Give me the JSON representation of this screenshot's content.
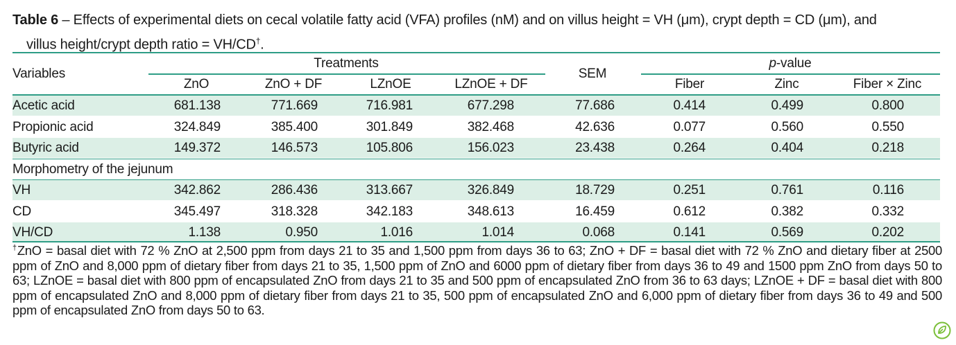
{
  "caption": {
    "label": "Table 6",
    "text_1": " – Effects of experimental diets on cecal volatile fatty acid (VFA) profiles (nM) and on villus height = VH (μm), crypt depth = CD (μm), and",
    "text_2": "villus height/crypt depth ratio = VH/CD",
    "dagger": "†",
    "end": "."
  },
  "header": {
    "variables": "Variables",
    "treatments": "Treatments",
    "sem": "SEM",
    "pvalue_italic": "p",
    "pvalue_rest": "-value",
    "columns": [
      "ZnO",
      "ZnO + DF",
      "LZnOE",
      "LZnOE + DF",
      "Fiber",
      "Zinc",
      "Fiber × Zinc"
    ]
  },
  "rows": [
    {
      "label": "Acetic acid",
      "values": [
        "681.138",
        "771.669",
        "716.981",
        "677.298",
        "77.686",
        "0.414",
        "0.499",
        "0.800"
      ]
    },
    {
      "label": "Propionic acid",
      "values": [
        "324.849",
        "385.400",
        "301.849",
        "382.468",
        "42.636",
        "0.077",
        "0.560",
        "0.550"
      ]
    },
    {
      "label": "Butyric acid",
      "values": [
        "149.372",
        "146.573",
        "105.806",
        "156.023",
        "23.438",
        "0.264",
        "0.404",
        "0.218"
      ]
    },
    {
      "label": "Morphometry of the jejunum"
    },
    {
      "label": "VH",
      "values": [
        "342.862",
        "286.436",
        "313.667",
        "326.849",
        "18.729",
        "0.251",
        "0.761",
        "0.116"
      ]
    },
    {
      "label": "CD",
      "values": [
        "345.497",
        "318.328",
        "342.183",
        "348.613",
        "16.459",
        "0.612",
        "0.382",
        "0.332"
      ]
    },
    {
      "label": "VH/CD",
      "values": [
        "1.138",
        "0.950",
        "1.016",
        "1.014",
        "0.068",
        "0.141",
        "0.569",
        "0.202"
      ]
    }
  ],
  "footnote": {
    "dagger": "†",
    "text": "ZnO = basal diet with 72 % ZnO at 2,500 ppm from days 21 to 35 and 1,500 ppm from days 36 to 63; ZnO + DF = basal diet with 72 % ZnO and dietary fiber at 2500 ppm of ZnO and 8,000 ppm of dietary fiber from days 21 to 35, 1,500 ppm of ZnO and 6000 ppm of dietary fiber from days 36 to 49 and 1500 ppm ZnO from days 50 to 63; LZnOE = basal diet with 800 ppm of encapsulated ZnO from days 21 to 35 and 500 ppm of encapsulated ZnO from 36 to 63 days; LZnOE + DF = basal diet with 800 ppm of encapsulated ZnO and 8,000 ppm of dietary fiber from days 21 to 35, 500 ppm of encapsulated ZnO and 6,000 ppm of dietary fiber from days 36 to 49 and 500 ppm of encapsulated ZnO from days 50 to 63."
  },
  "colors": {
    "accent": "#2e9d86",
    "band": "#dcefe6",
    "text": "#1a1a1a"
  },
  "logo_icon": "leaf-badge-icon"
}
